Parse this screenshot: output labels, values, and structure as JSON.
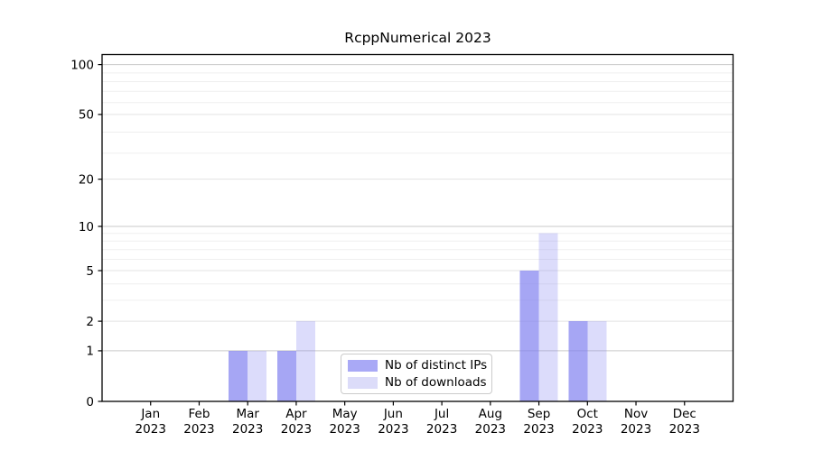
{
  "title": "RcppNumerical 2023",
  "chart_data": {
    "type": "bar",
    "title": "RcppNumerical 2023",
    "x_year": "2023",
    "months": [
      "Jan",
      "Feb",
      "Mar",
      "Apr",
      "May",
      "Jun",
      "Jul",
      "Aug",
      "Sep",
      "Oct",
      "Nov",
      "Dec"
    ],
    "categories": [
      "Jan 2023",
      "Feb 2023",
      "Mar 2023",
      "Apr 2023",
      "May 2023",
      "Jun 2023",
      "Jul 2023",
      "Aug 2023",
      "Sep 2023",
      "Oct 2023",
      "Nov 2023",
      "Dec 2023"
    ],
    "series": [
      {
        "name": "Nb of distinct IPs",
        "color": "rgba(128,128,240,0.7)",
        "color_hex": "#a9a9f6",
        "values": [
          0,
          0,
          1,
          1,
          0,
          0,
          0,
          0,
          5,
          2,
          0,
          0
        ]
      },
      {
        "name": "Nb of downloads",
        "color": "rgba(128,128,240,0.28)",
        "color_hex": "#dcdcf9",
        "values": [
          0,
          0,
          1,
          2,
          0,
          0,
          0,
          0,
          9,
          2,
          0,
          0
        ]
      }
    ],
    "y_scale": "log10(value+1)",
    "y_ticks": [
      0,
      1,
      2,
      5,
      10,
      20,
      50,
      100
    ],
    "y_tick_labels": [
      "0",
      "1",
      "2",
      "5",
      "10",
      "20",
      "50",
      "100"
    ],
    "ylim": [
      0,
      115
    ],
    "grid": {
      "major_at": [
        1,
        2,
        5,
        10,
        20,
        50,
        100
      ],
      "emphasis_at": [
        1,
        10,
        100
      ],
      "minor_at": [
        3,
        4,
        6,
        7,
        8,
        9,
        29,
        39,
        59,
        69,
        79,
        89
      ]
    },
    "legend": {
      "position": "bottom-center",
      "entries": [
        "Nb of distinct IPs",
        "Nb of downloads"
      ]
    }
  }
}
